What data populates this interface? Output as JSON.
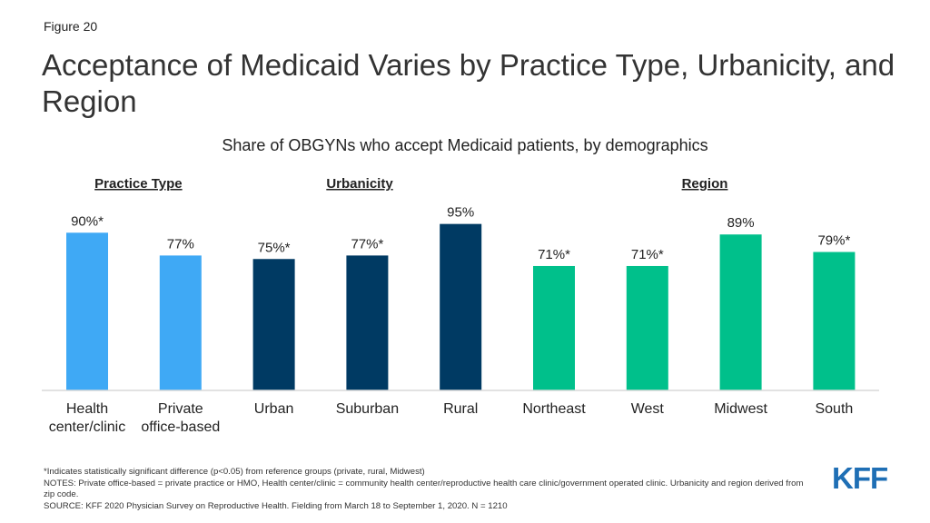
{
  "header": {
    "figure_label": "Figure 20",
    "title": "Acceptance of Medicaid Varies by Practice Type, Urbanicity, and Region"
  },
  "chart_data": {
    "type": "bar",
    "title": "Share of OBGYNs who accept Medicaid patients, by demographics",
    "xlabel": "",
    "ylabel": "",
    "ylim": [
      0,
      100
    ],
    "grid": false,
    "groups": [
      {
        "label": "Practice Type",
        "color": "#3fa9f5",
        "bars": [
          {
            "category": [
              "Health",
              "center/clinic"
            ],
            "value": 90,
            "label": "90%*"
          },
          {
            "category": [
              "Private",
              "office-based"
            ],
            "value": 77,
            "label": "77%"
          }
        ]
      },
      {
        "label": "Urbanicity",
        "color": "#003a63",
        "bars": [
          {
            "category": [
              "Urban"
            ],
            "value": 75,
            "label": "75%*"
          },
          {
            "category": [
              "Suburban"
            ],
            "value": 77,
            "label": "77%*"
          },
          {
            "category": [
              "Rural"
            ],
            "value": 95,
            "label": "95%"
          }
        ]
      },
      {
        "label": "Region",
        "color": "#00c08b",
        "bars": [
          {
            "category": [
              "Northeast"
            ],
            "value": 71,
            "label": "71%*"
          },
          {
            "category": [
              "West"
            ],
            "value": 71,
            "label": "71%*"
          },
          {
            "category": [
              "Midwest"
            ],
            "value": 89,
            "label": "89%"
          },
          {
            "category": [
              "South"
            ],
            "value": 79,
            "label": "79%*"
          }
        ]
      }
    ]
  },
  "footer": {
    "significance_note": "*Indicates statistically significant difference (p<0.05) from reference groups (private, rural, Midwest)",
    "notes": "NOTES: Private office-based = private practice or HMO, Health center/clinic = community health center/reproductive health care clinic/government operated clinic. Urbanicity and region derived from zip code.",
    "source": "SOURCE: KFF 2020 Physician Survey on Reproductive Health. Fielding from March 18 to September 1, 2020. N = 1210"
  },
  "logo": {
    "text": "KFF",
    "color": "#1f6fb5"
  }
}
